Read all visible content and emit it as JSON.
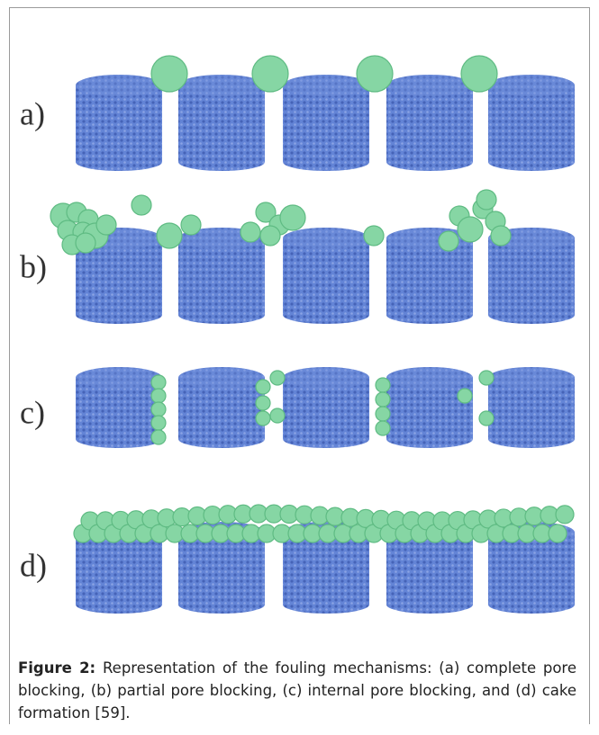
{
  "figure": {
    "panels": [
      {
        "label": "a)"
      },
      {
        "label": "b)"
      },
      {
        "label": "c)"
      },
      {
        "label": "d)"
      }
    ],
    "caption": {
      "label": "Figure 2:",
      "text": "Representation of the fouling mechanisms: (a) complete pore blocking, (b) partial pore blocking, (c) internal pore blocking, and (d) cake formation [59]."
    }
  }
}
